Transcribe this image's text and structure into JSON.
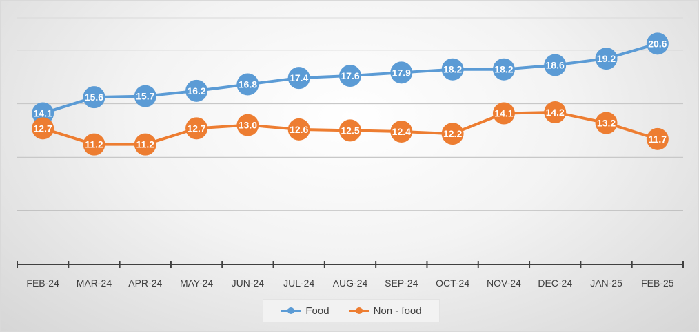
{
  "chart_data": {
    "type": "line",
    "title": "",
    "xlabel": "",
    "ylabel": "",
    "ylim": [
      0,
      23
    ],
    "grid": true,
    "legend_position": "bottom",
    "categories": [
      "FEB-24",
      "MAR-24",
      "APR-24",
      "MAY-24",
      "JUN-24",
      "JUL-24",
      "AUG-24",
      "SEP-24",
      "OCT-24",
      "NOV-24",
      "DEC-24",
      "JAN-25",
      "FEB-25"
    ],
    "series": [
      {
        "name": "Food",
        "color": "#5b9bd5",
        "values": [
          14.1,
          15.6,
          15.7,
          16.2,
          16.8,
          17.4,
          17.6,
          17.9,
          18.2,
          18.2,
          18.6,
          19.2,
          20.6
        ]
      },
      {
        "name": "Non - food",
        "color": "#ed7d31",
        "values": [
          12.7,
          11.2,
          11.2,
          12.7,
          13.0,
          12.6,
          12.5,
          12.4,
          12.2,
          14.1,
          14.2,
          13.2,
          11.7
        ]
      }
    ]
  }
}
